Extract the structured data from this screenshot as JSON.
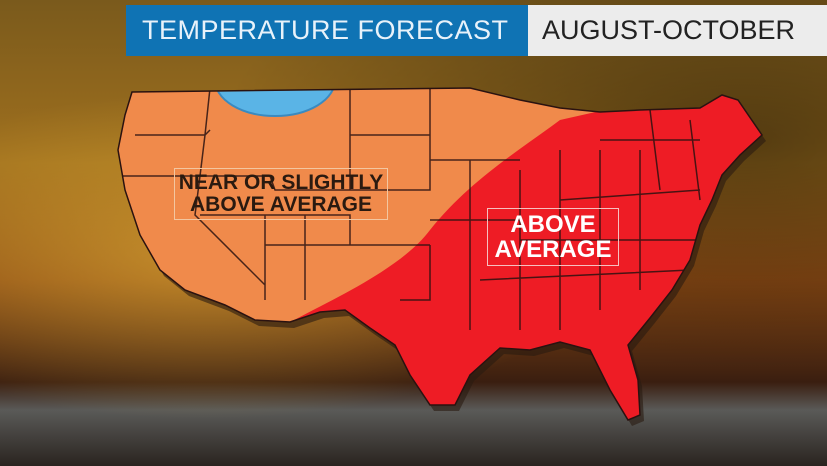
{
  "header": {
    "title": "TEMPERATURE FORECAST",
    "date_range": "AUGUST-OCTOBER"
  },
  "map": {
    "regions": [
      {
        "label": "NEAR OR SLIGHTLY\nABOVE AVERAGE",
        "line1": "NEAR OR SLIGHTLY",
        "line2": "ABOVE AVERAGE",
        "color": "#f08a4b"
      },
      {
        "label": "ABOVE AVERAGE",
        "line1": "ABOVE",
        "line2": "AVERAGE",
        "color": "#ee1c25"
      },
      {
        "label": "",
        "color": "#5ab4e6"
      }
    ]
  }
}
